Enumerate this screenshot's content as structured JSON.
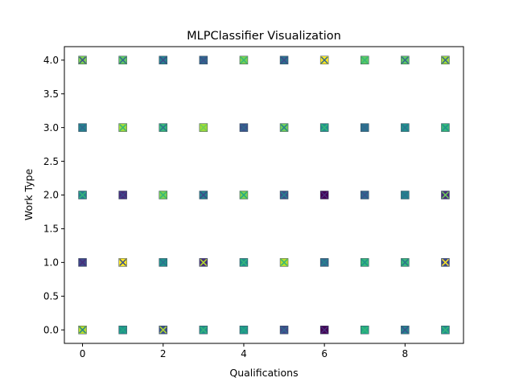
{
  "chart_data": {
    "type": "scatter",
    "title": "MLPClassifier Visualization",
    "xlabel": "Qualifications",
    "ylabel": "Work Type",
    "xlim": [
      -0.45,
      9.45
    ],
    "ylim": [
      -0.2,
      4.2
    ],
    "xticks": [
      0,
      2,
      4,
      6,
      8
    ],
    "yticks": [
      0.0,
      0.5,
      1.0,
      1.5,
      2.0,
      2.5,
      3.0,
      3.5,
      4.0
    ],
    "xtick_labels": [
      "0",
      "2",
      "4",
      "6",
      "8"
    ],
    "ytick_labels": [
      "0.0",
      "0.5",
      "1.0",
      "1.5",
      "2.0",
      "2.5",
      "3.0",
      "3.5",
      "4.0"
    ],
    "grid": false,
    "colormap": "viridis",
    "marker_styles": [
      "square",
      "x"
    ],
    "points": [
      {
        "x": 0,
        "y": 4,
        "fill": "#7ad151",
        "cross": "#3b528b"
      },
      {
        "x": 1,
        "y": 4,
        "fill": "#5ec962",
        "cross": "#31688e"
      },
      {
        "x": 2,
        "y": 4,
        "fill": "#26828e",
        "cross": "#3e4989"
      },
      {
        "x": 3,
        "y": 4,
        "fill": "#31688e",
        "cross": "#3b528b"
      },
      {
        "x": 4,
        "y": 4,
        "fill": "#7ad151",
        "cross": "#35b779"
      },
      {
        "x": 5,
        "y": 4,
        "fill": "#2c728e",
        "cross": "#3e4989"
      },
      {
        "x": 6,
        "y": 4,
        "fill": "#fde725",
        "cross": "#31688e"
      },
      {
        "x": 7,
        "y": 4,
        "fill": "#5ec962",
        "cross": "#35b779"
      },
      {
        "x": 8,
        "y": 4,
        "fill": "#5ec962",
        "cross": "#31688e"
      },
      {
        "x": 9,
        "y": 4,
        "fill": "#a0da39",
        "cross": "#31688e"
      },
      {
        "x": 0,
        "y": 3,
        "fill": "#26828e",
        "cross": "#31688e"
      },
      {
        "x": 1,
        "y": 3,
        "fill": "#a0da39",
        "cross": "#35b779"
      },
      {
        "x": 2,
        "y": 3,
        "fill": "#35b779",
        "cross": "#2c728e"
      },
      {
        "x": 3,
        "y": 3,
        "fill": "#a0da39",
        "cross": "#6ece58"
      },
      {
        "x": 4,
        "y": 3,
        "fill": "#3b528b",
        "cross": "#31688e"
      },
      {
        "x": 5,
        "y": 3,
        "fill": "#6ece58",
        "cross": "#26828e"
      },
      {
        "x": 6,
        "y": 3,
        "fill": "#21918c",
        "cross": "#35b779"
      },
      {
        "x": 7,
        "y": 3,
        "fill": "#2c728e",
        "cross": "#31688e"
      },
      {
        "x": 8,
        "y": 3,
        "fill": "#21918c",
        "cross": "#2c728e"
      },
      {
        "x": 9,
        "y": 3,
        "fill": "#35b779",
        "cross": "#21918c"
      },
      {
        "x": 0,
        "y": 2,
        "fill": "#26828e",
        "cross": "#35b779"
      },
      {
        "x": 1,
        "y": 2,
        "fill": "#472d7b",
        "cross": "#3e4989"
      },
      {
        "x": 2,
        "y": 2,
        "fill": "#7ad151",
        "cross": "#35b779"
      },
      {
        "x": 3,
        "y": 2,
        "fill": "#26828e",
        "cross": "#3e4989"
      },
      {
        "x": 4,
        "y": 2,
        "fill": "#7ad151",
        "cross": "#22a884"
      },
      {
        "x": 5,
        "y": 2,
        "fill": "#3b528b",
        "cross": "#26828e"
      },
      {
        "x": 6,
        "y": 2,
        "fill": "#440154",
        "cross": "#472d7b"
      },
      {
        "x": 7,
        "y": 2,
        "fill": "#31688e",
        "cross": "#3b528b"
      },
      {
        "x": 8,
        "y": 2,
        "fill": "#26828e",
        "cross": "#2c728e"
      },
      {
        "x": 9,
        "y": 2,
        "fill": "#472d7b",
        "cross": "#6ece58"
      },
      {
        "x": 0,
        "y": 1,
        "fill": "#3e4989",
        "cross": "#472d7b"
      },
      {
        "x": 1,
        "y": 1,
        "fill": "#fde725",
        "cross": "#3b528b"
      },
      {
        "x": 2,
        "y": 1,
        "fill": "#21918c",
        "cross": "#2c728e"
      },
      {
        "x": 3,
        "y": 1,
        "fill": "#472d7b",
        "cross": "#b5de2b"
      },
      {
        "x": 4,
        "y": 1,
        "fill": "#21918c",
        "cross": "#35b779"
      },
      {
        "x": 5,
        "y": 1,
        "fill": "#b5de2b",
        "cross": "#35b779"
      },
      {
        "x": 6,
        "y": 1,
        "fill": "#31688e",
        "cross": "#26828e"
      },
      {
        "x": 7,
        "y": 1,
        "fill": "#35b779",
        "cross": "#21918c"
      },
      {
        "x": 8,
        "y": 1,
        "fill": "#35b779",
        "cross": "#2c728e"
      },
      {
        "x": 9,
        "y": 1,
        "fill": "#3e4989",
        "cross": "#fde725"
      },
      {
        "x": 0,
        "y": 0,
        "fill": "#b5de2b",
        "cross": "#26828e"
      },
      {
        "x": 1,
        "y": 0,
        "fill": "#21918c",
        "cross": "#22a884"
      },
      {
        "x": 2,
        "y": 0,
        "fill": "#3b528b",
        "cross": "#b5de2b"
      },
      {
        "x": 3,
        "y": 0,
        "fill": "#21918c",
        "cross": "#35b779"
      },
      {
        "x": 4,
        "y": 0,
        "fill": "#21918c",
        "cross": "#22a884"
      },
      {
        "x": 5,
        "y": 0,
        "fill": "#3e4989",
        "cross": "#31688e"
      },
      {
        "x": 6,
        "y": 0,
        "fill": "#440154",
        "cross": "#472d7b"
      },
      {
        "x": 7,
        "y": 0,
        "fill": "#22a884",
        "cross": "#35b779"
      },
      {
        "x": 8,
        "y": 0,
        "fill": "#26828e",
        "cross": "#3b528b"
      },
      {
        "x": 9,
        "y": 0,
        "fill": "#21918c",
        "cross": "#35b779"
      }
    ]
  }
}
